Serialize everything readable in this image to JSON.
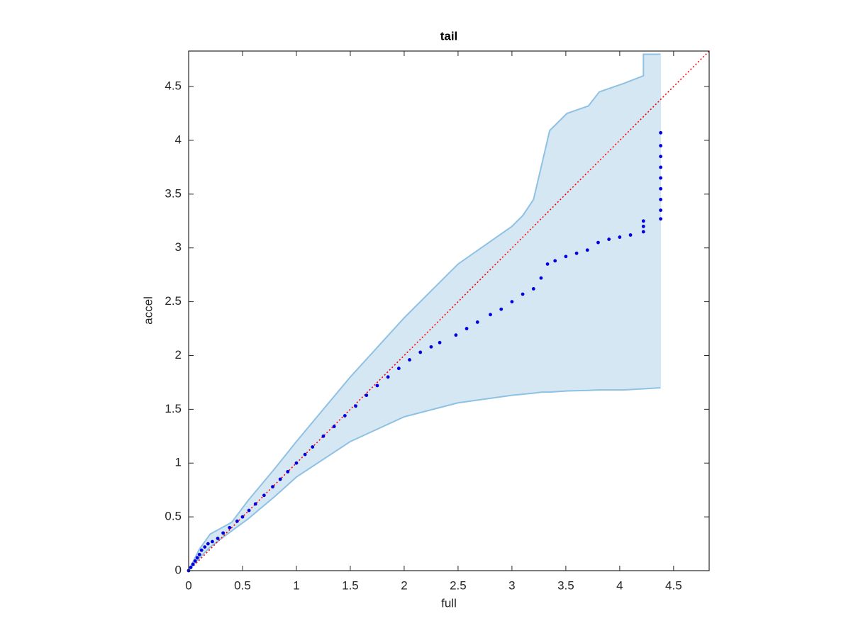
{
  "chart_data": {
    "type": "scatter",
    "title": "tail",
    "x_label": "full",
    "y_label": "accel",
    "xlim": [
      0,
      4.83
    ],
    "ylim": [
      0,
      4.83
    ],
    "xticks": [
      0,
      0.5,
      1,
      1.5,
      2,
      2.5,
      3,
      3.5,
      4,
      4.5
    ],
    "yticks": [
      0,
      0.5,
      1,
      1.5,
      2,
      2.5,
      3,
      3.5,
      4,
      4.5
    ],
    "grid": false,
    "band": {
      "color": "#8fc1e3",
      "fill": "#d6e7f4",
      "x": [
        0,
        0.05,
        0.1,
        0.2,
        0.4,
        0.55,
        0.8,
        1.0,
        1.5,
        2.0,
        2.5,
        3.0,
        3.1,
        3.2,
        3.28,
        3.35,
        3.51,
        3.71,
        3.81,
        4.04,
        4.22,
        4.22,
        4.38
      ],
      "upper": [
        0,
        0.1,
        0.2,
        0.34,
        0.45,
        0.65,
        0.95,
        1.2,
        1.8,
        2.35,
        2.85,
        3.2,
        3.3,
        3.45,
        3.79,
        4.09,
        4.25,
        4.32,
        4.45,
        4.53,
        4.6,
        4.8,
        4.8
      ],
      "lower": [
        0,
        0.06,
        0.12,
        0.22,
        0.37,
        0.48,
        0.69,
        0.87,
        1.2,
        1.43,
        1.56,
        1.63,
        1.64,
        1.65,
        1.66,
        1.66,
        1.67,
        1.675,
        1.68,
        1.68,
        1.69,
        1.69,
        1.7
      ]
    },
    "reference_line": {
      "color": "#ff0000",
      "x": [
        0,
        4.83
      ],
      "y": [
        0,
        4.83
      ]
    },
    "points": {
      "color": "#0000e0",
      "x": [
        0,
        0.02,
        0.04,
        0.06,
        0.08,
        0.1,
        0.12,
        0.15,
        0.18,
        0.22,
        0.27,
        0.32,
        0.38,
        0.45,
        0.5,
        0.56,
        0.62,
        0.7,
        0.78,
        0.85,
        0.92,
        1.0,
        1.08,
        1.15,
        1.25,
        1.35,
        1.45,
        1.55,
        1.65,
        1.75,
        1.85,
        1.95,
        2.05,
        2.15,
        2.25,
        2.33,
        2.48,
        2.58,
        2.68,
        2.8,
        2.9,
        3.0,
        3.1,
        3.2,
        3.27,
        3.33,
        3.4,
        3.5,
        3.6,
        3.7,
        3.8,
        3.9,
        4.0,
        4.1,
        4.22,
        4.22,
        4.22,
        4.38,
        4.38,
        4.38,
        4.38,
        4.38,
        4.38,
        4.38,
        4.38,
        4.38
      ],
      "y": [
        0,
        0.03,
        0.06,
        0.09,
        0.12,
        0.15,
        0.19,
        0.22,
        0.25,
        0.27,
        0.3,
        0.35,
        0.4,
        0.46,
        0.5,
        0.56,
        0.62,
        0.7,
        0.78,
        0.85,
        0.92,
        1.0,
        1.08,
        1.15,
        1.25,
        1.34,
        1.44,
        1.53,
        1.63,
        1.72,
        1.8,
        1.88,
        1.96,
        2.03,
        2.08,
        2.12,
        2.19,
        2.25,
        2.31,
        2.38,
        2.43,
        2.5,
        2.57,
        2.62,
        2.72,
        2.85,
        2.88,
        2.92,
        2.95,
        2.98,
        3.05,
        3.08,
        3.1,
        3.12,
        3.15,
        3.2,
        3.25,
        3.27,
        3.35,
        3.45,
        3.55,
        3.65,
        3.75,
        3.85,
        3.95,
        4.07
      ]
    }
  }
}
